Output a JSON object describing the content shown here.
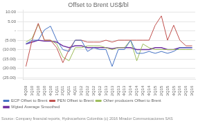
{
  "chart_data": {
    "type": "line",
    "title": "Offset to Brent US$/bl",
    "annotations": [
      "Source: Company financial reports, Hydrocarbons Colombia (c) 2016 Mirador Communicaciones SAS"
    ],
    "categories": [
      "4Q09",
      "1Q10",
      "2Q10",
      "3Q10",
      "4Q10",
      "1Q11",
      "2Q11",
      "3Q11",
      "4Q11",
      "1Q12",
      "2Q12",
      "3Q12",
      "4Q12",
      "1Q13",
      "2Q13",
      "3Q13",
      "4Q13",
      "1Q14",
      "2Q14",
      "3Q14",
      "4Q14",
      "1Q15",
      "2Q15",
      "3Q15",
      "4Q15",
      "1Q16",
      "2Q16",
      "3Q16"
    ],
    "series": [
      {
        "name": "ECP Offset to Brent",
        "color": "#4472c4",
        "values": [
          -7,
          -5,
          -5,
          0.5,
          2.5,
          -5,
          -10,
          -11,
          -5,
          -5,
          -11,
          -9,
          -10,
          -10,
          -19,
          -10,
          -10,
          -5,
          -12,
          -12,
          -11,
          -12,
          -11,
          -12,
          -11,
          -9,
          -9,
          -9
        ]
      },
      {
        "name": "PEN Offset to Brent",
        "color": "#c0504d",
        "values": [
          -19,
          -5,
          4,
          -5,
          -5,
          -9,
          -17,
          -10,
          -5,
          -5,
          -6,
          -6,
          -6,
          -5,
          -6,
          -5,
          -5,
          -5,
          -5,
          -5,
          -5,
          3,
          8,
          -5,
          3,
          -5,
          -8,
          -8
        ]
      },
      {
        "name": "Other producers Offset to Brent",
        "color": "#9bbb59",
        "values": [
          -6,
          -4,
          3.5,
          -5,
          -5,
          -7,
          -14,
          -16,
          -9,
          -9,
          -8,
          -8,
          -8,
          -9,
          -10,
          -9,
          -9,
          -5,
          -16,
          -7,
          -9,
          -10,
          -10,
          -10,
          -10,
          -10,
          -10,
          -10
        ]
      },
      {
        "name": "Wgted Average Smoothed",
        "color": "#7030a0",
        "values": [
          -7,
          -6,
          -5,
          -5.5,
          -5.5,
          -6,
          -8,
          -9,
          -8,
          -8,
          -9,
          -9,
          -9,
          -9,
          -9.5,
          -9,
          -9,
          -9,
          -10,
          -10,
          -10,
          -9,
          -9,
          -10,
          -10,
          -9,
          -9,
          -9
        ]
      }
    ],
    "ylim": [
      -26,
      11
    ],
    "yticks": [
      {
        "value": 10,
        "label": "10.00"
      },
      {
        "value": 5,
        "label": "5.00"
      },
      {
        "value": 0,
        "label": "-"
      },
      {
        "value": -5,
        "label": "(5.00)"
      },
      {
        "value": -10,
        "label": "(10.00)"
      },
      {
        "value": -15,
        "label": "(15.00)"
      },
      {
        "value": -20,
        "label": "(20.00)"
      },
      {
        "value": -25,
        "label": "(25.00)"
      }
    ],
    "grid": true,
    "legend": "lower left"
  }
}
